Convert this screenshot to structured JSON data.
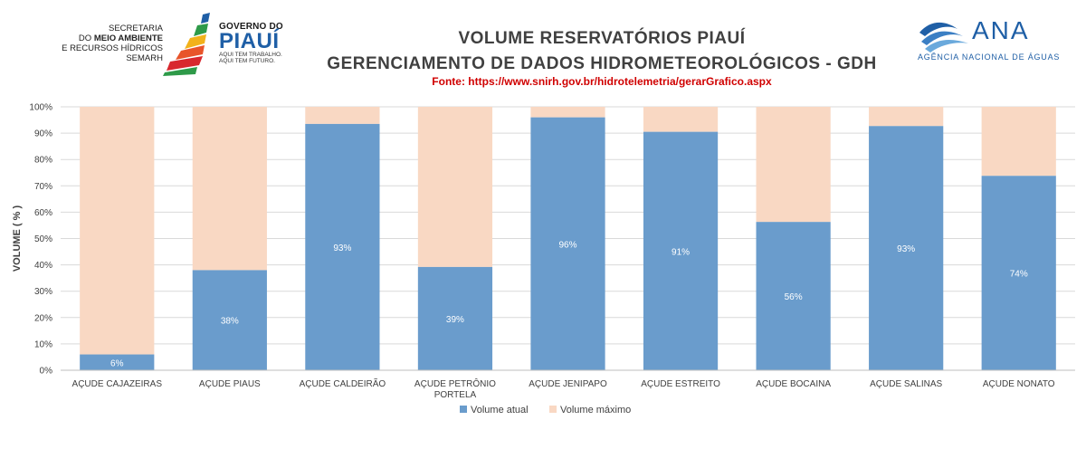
{
  "header": {
    "semarh_line1": "SECRETARIA",
    "semarh_line2_prefix": "DO ",
    "semarh_line2_bold": "MEIO AMBIENTE",
    "semarh_line3": "E RECURSOS HÍDRICOS",
    "semarh_line4": "SEMARH",
    "gov_line1": "GOVERNO DO",
    "gov_line2": "PIAUÍ",
    "gov_line3": "AQUI TEM TRABALHO.",
    "gov_line4": "AQUI TEM FUTURO.",
    "title1": "VOLUME RESERVATÓRIOS PIAUÍ",
    "title2": "GERENCIAMENTO DE DADOS HIDROMETEOROLÓGICOS - GDH",
    "source": "Fonte: https://www.snirh.gov.br/hidrotelemetria/gerarGrafico.aspx",
    "ana_word": "ANA",
    "ana_sub": "AGÊNCIA NACIONAL DE ÁGUAS"
  },
  "colors": {
    "atual": "#6a9ccc",
    "maximo": "#f9d8c3",
    "grid": "#d9d9d9",
    "axis_text": "#404040",
    "label_text": "#ffffff"
  },
  "chart_data": {
    "type": "bar",
    "stacked": true,
    "categories": [
      "AÇUDE CAJAZEIRAS",
      "AÇUDE PIAUS",
      "AÇUDE CALDEIRÃO",
      "AÇUDE PETRÔNIO PORTELA",
      "AÇUDE JENIPAPO",
      "AÇUDE ESTREITO",
      "AÇUDE BOCAINA",
      "AÇUDE SALINAS",
      "AÇUDE NONATO"
    ],
    "category_lines": [
      [
        "AÇUDE CAJAZEIRAS"
      ],
      [
        "AÇUDE PIAUS"
      ],
      [
        "AÇUDE CALDEIRÃO"
      ],
      [
        "AÇUDE PETRÔNIO",
        "PORTELA"
      ],
      [
        "AÇUDE JENIPAPO"
      ],
      [
        "AÇUDE ESTREITO"
      ],
      [
        "AÇUDE BOCAINA"
      ],
      [
        "AÇUDE SALINAS"
      ],
      [
        "AÇUDE NONATO"
      ]
    ],
    "series": [
      {
        "name": "Volume atual",
        "values": [
          6,
          38,
          93.5,
          39.2,
          96,
          90.5,
          56.3,
          92.7,
          73.8
        ],
        "labels": [
          "6%",
          "38%",
          "93%",
          "39%",
          "96%",
          "91%",
          "56%",
          "93%",
          "74%"
        ]
      },
      {
        "name": "Volume máximo",
        "values": [
          94,
          62,
          6.5,
          60.8,
          4,
          9.5,
          43.7,
          7.3,
          26.2
        ]
      }
    ],
    "ylabel": "VOLUME ( % )",
    "xlabel": "",
    "ylim": [
      0,
      100
    ],
    "yticks": [
      "0%",
      "10%",
      "20%",
      "30%",
      "40%",
      "50%",
      "60%",
      "70%",
      "80%",
      "90%",
      "100%"
    ],
    "grid": true,
    "legend_position": "bottom"
  }
}
